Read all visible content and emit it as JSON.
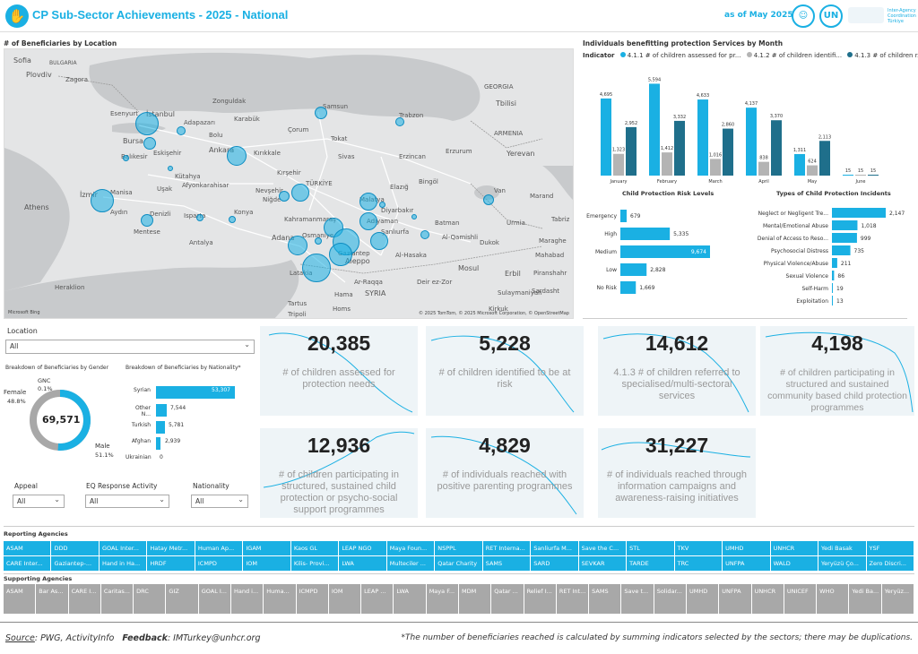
{
  "header": {
    "title": "CP Sub-Sector Achievements - 2025 - National",
    "as_of": "as of May 2025",
    "iasc_text": "Inter-Agency Coordination Türkiye"
  },
  "map": {
    "title": "# of Beneficiaries by Location",
    "labels": [
      "Sofia",
      "BULGARIA",
      "Plovdiv",
      "Zagora",
      "İstanbul",
      "Zonguldak",
      "Samsun",
      "GEORGIA",
      "Tbilisi",
      "Bursa",
      "Adapazarı",
      "Karabük",
      "Çorum",
      "Trabzon",
      "Esenyurt",
      "Eskişehir",
      "Bolu",
      "Tokat",
      "ARMENIA",
      "Balıkesir",
      "Ankara",
      "Kırıkkale",
      "Sivas",
      "Erzincan",
      "Erzurum",
      "Yerevan",
      "Kütahya",
      "Kırşehir",
      "Uşak",
      "Afyonkarahisar",
      "Nevşehir",
      "Bingöl",
      "İzmir",
      "Manisa",
      "TÜRKİYE",
      "Malatya",
      "Elazığ",
      "Van",
      "Aydın",
      "Denizli",
      "Niğde",
      "Athens",
      "Konya",
      "Kahramanmaraş",
      "Adıyaman",
      "Diyarbakır",
      "Marand",
      "Mentese",
      "Isparta",
      "Adana",
      "Osmaniye",
      "Gaziantep",
      "Şanlıurfa",
      "Batman",
      "Urmia",
      "Antalya",
      "Al-Qamishli",
      "Dukok",
      "Mosul",
      "Erbil",
      "Heraklion",
      "Latakia",
      "Aleppo",
      "Al-Hasaka",
      "Ar-Raqqa",
      "Deir ez-Zor",
      "Hama",
      "SYRIA",
      "Tripoli",
      "Tartus",
      "Homs",
      "Sulaymaniyah",
      "Kirkuk",
      "Piranshahr",
      "Mahabad",
      "Maraghe",
      "Tabriz",
      "Sardasht"
    ],
    "attribution": "© 2025 TomTom, © 2025 Microsoft Corporation, © OpenStreetMap",
    "provider": "Microsoft Bing"
  },
  "monthly_chart": {
    "title": "Individuals benefitting protection Services by Month",
    "legend_label": "Indicator",
    "legend": [
      {
        "name": "4.1.1 # of children assessed for pr...",
        "color": "#1ab0e3"
      },
      {
        "name": "4.1.2 # of children identifi...",
        "color": "#b4b4b4"
      },
      {
        "name": "4.1.3 # of children r...",
        "color": "#1f6f8b"
      }
    ]
  },
  "chart_data": [
    {
      "type": "bar",
      "title": "Individuals benefitting protection Services by Month",
      "categories": [
        "January",
        "February",
        "March",
        "April",
        "May",
        "June"
      ],
      "series": [
        {
          "name": "4.1.1 # of children assessed for pr...",
          "values": [
            4695,
            5594,
            4633,
            4137,
            1311,
            15
          ]
        },
        {
          "name": "4.1.2 # of children identifi...",
          "values": [
            1323,
            1412,
            1016,
            838,
            624,
            15
          ]
        },
        {
          "name": "4.1.3 # of children r...",
          "values": [
            2952,
            3332,
            2860,
            3370,
            2113,
            15
          ]
        }
      ]
    },
    {
      "type": "bar",
      "title": "Child Protection Risk Levels",
      "categories": [
        "Emergency",
        "High",
        "Medium",
        "Low",
        "No Risk"
      ],
      "values": [
        679,
        5335,
        9674,
        2828,
        1669
      ]
    },
    {
      "type": "bar",
      "title": "Types of Child Protection Incidents",
      "categories": [
        "Neglect or Negligent Tre...",
        "Mental/Emotional Abuse",
        "Denial of Access to Reso...",
        "Psychosocial Distress",
        "Physical Violence/Abuse",
        "Sexual Violence",
        "Self-Harm",
        "Exploitation"
      ],
      "values": [
        2147,
        1018,
        999,
        735,
        211,
        86,
        19,
        13
      ]
    },
    {
      "type": "pie",
      "title": "Breakdown of Beneficiaries by Gender",
      "categories": [
        "Female",
        "Male",
        "GNC"
      ],
      "values": [
        48.8,
        51.1,
        0.1
      ],
      "total": "69,571"
    },
    {
      "type": "bar",
      "title": "Breakdown of Beneficiaries by Nationality*",
      "categories": [
        "Syrian",
        "Other N...",
        "Turkish",
        "Afghan",
        "Ukrainian"
      ],
      "values": [
        53307,
        7544,
        5781,
        2939,
        0
      ]
    }
  ],
  "risk_title": "Child Protection Risk Levels",
  "incidents_title": "Types of Child Protection Incidents",
  "filters": {
    "location_label": "Location",
    "location_value": "All",
    "appeal_label": "Appeal",
    "appeal_value": "All",
    "eq_label": "EQ Response Activity",
    "eq_value": "All",
    "nationality_label": "Nationality",
    "nationality_value": "All"
  },
  "gender": {
    "title": "Breakdown of Beneficiaries by Gender",
    "total": "69,571",
    "female_label": "Female",
    "female_pct": "48.8%",
    "male_label": "Male",
    "male_pct": "51.1%",
    "gnc_label": "GNC",
    "gnc_pct": "0.1%"
  },
  "nationality": {
    "title": "Breakdown of Beneficiaries by Nationality*",
    "rows": [
      {
        "label": "Syrian",
        "value": "53,307"
      },
      {
        "label": "Other N...",
        "value": "7,544"
      },
      {
        "label": "Turkish",
        "value": "5,781"
      },
      {
        "label": "Afghan",
        "value": "2,939"
      },
      {
        "label": "Ukrainian",
        "value": "0"
      }
    ]
  },
  "kpis": [
    {
      "value": "20,385",
      "desc": "# of children assessed for protection needs"
    },
    {
      "value": "5,228",
      "desc": "# of children identified to be at risk"
    },
    {
      "value": "14,612",
      "desc": "4.1.3 # of children referred to specialised/multi-sectoral services"
    },
    {
      "value": "4,198",
      "desc": "# of children participating in structured and sustained community based child protection programmes"
    },
    {
      "value": "12,936",
      "desc": "# of children participating in structured, sustained child protection or psycho-social support programmes"
    },
    {
      "value": "4,829",
      "desc": "# of individuals reached with positive parenting programmes"
    },
    {
      "value": "31,227",
      "desc": "# of individuals reached through information campaigns and awareness-raising initiatives"
    }
  ],
  "reporting": {
    "title": "Reporting Agencies",
    "row1": [
      "ASAM",
      "DDD",
      "GOAL Inter...",
      "Hatay Metr...",
      "Human Ap...",
      "IGAM",
      "Kaos GL",
      "LEAP NGO",
      "Maya Foun...",
      "NSPPL",
      "RET Interna...",
      "Sanliurfa M...",
      "Save the C...",
      "STL",
      "TKV",
      "UMHD",
      "UNHCR",
      "Yedi Basak",
      "YSF"
    ],
    "row2": [
      "CARE Inter...",
      "Gaziantep-...",
      "Hand in Ha...",
      "HRDF",
      "ICMPD",
      "IOM",
      "Kilis- Provi...",
      "LWA",
      "Multeciler ...",
      "Qatar Charity",
      "SAMS",
      "SARD",
      "SEVKAR",
      "TARDE",
      "TRC",
      "UNFPA",
      "WALD",
      "Yeryüzü Ço...",
      "Zero Discri..."
    ]
  },
  "supporting": {
    "title": "Supporting Agencies",
    "row1": [
      "ASAM",
      "Bar As...",
      "CARE I...",
      "Caritas...",
      "DRC",
      "GIZ",
      "GOAL I...",
      "Hand i...",
      "Huma...",
      "ICMPD",
      "IOM",
      "LEAP ...",
      "LWA",
      "Maya F...",
      "MDM",
      "Qatar ...",
      "Relief I...",
      "RET Int...",
      "SAMS",
      "Save t...",
      "Solidar...",
      "UMHD",
      "UNFPA",
      "UNHCR",
      "UNICEF",
      "WHO",
      "Yedi Ba...",
      "Yeryüz..."
    ]
  },
  "footer": {
    "source_label": "Source",
    "source_text": ": PWG, ActivityInfo",
    "feedback_label": "Feedback",
    "feedback_text": ": IMTurkey@unhcr.org",
    "note": "*The number of beneficiaries reached is calculated by summing indicators selected by the sectors; there may be duplications."
  },
  "colors": {
    "accent": "#1ab0e3",
    "grey": "#b4b4b4",
    "dark": "#1f6f8b"
  }
}
